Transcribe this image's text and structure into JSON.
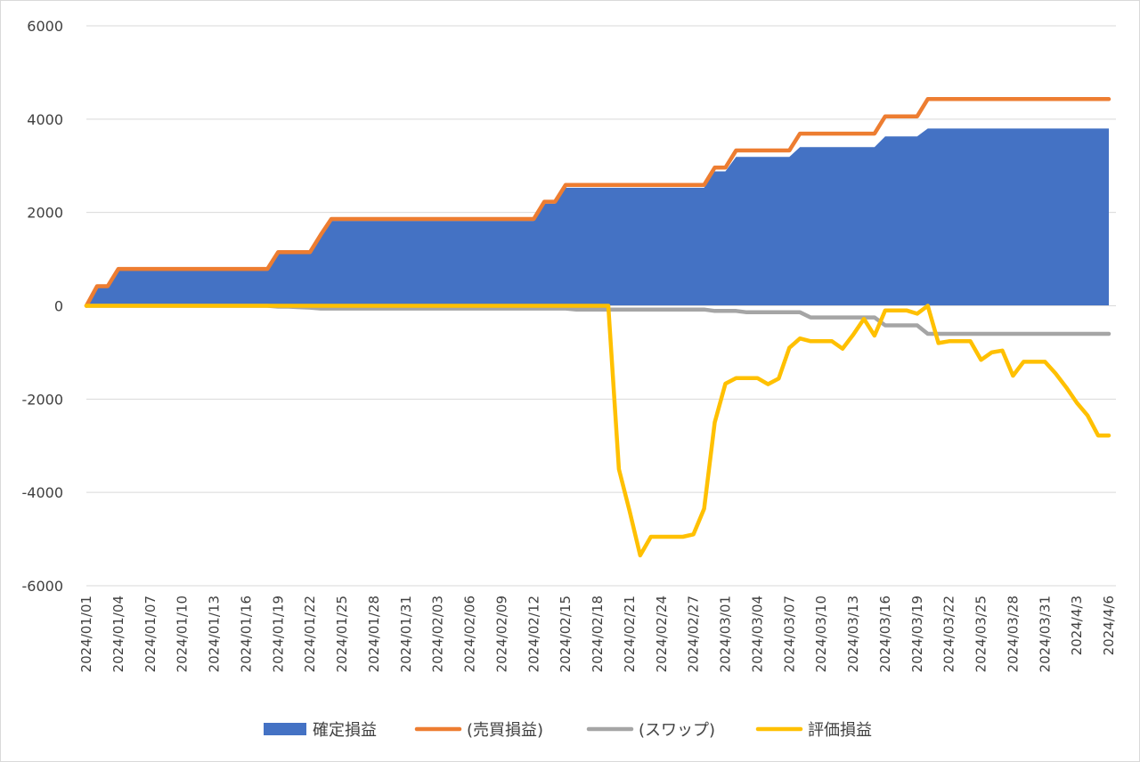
{
  "chart_data": {
    "type": "area",
    "ylim": [
      -6000,
      6000
    ],
    "y_ticks": [
      6000,
      4000,
      2000,
      0,
      -2000,
      -4000,
      -6000
    ],
    "y_tick_labels": [
      "6000",
      "4000",
      "2000",
      "0",
      "-2000",
      "-4000",
      "-6000"
    ],
    "grid": true,
    "legend_position": "bottom",
    "categories": [
      "2024/01/01",
      "2024/01/02",
      "2024/01/03",
      "2024/01/04",
      "2024/01/05",
      "2024/01/06",
      "2024/01/07",
      "2024/01/08",
      "2024/01/09",
      "2024/01/10",
      "2024/01/11",
      "2024/01/12",
      "2024/01/13",
      "2024/01/14",
      "2024/01/15",
      "2024/01/16",
      "2024/01/17",
      "2024/01/18",
      "2024/01/19",
      "2024/01/20",
      "2024/01/21",
      "2024/01/22",
      "2024/01/23",
      "2024/01/24",
      "2024/01/25",
      "2024/01/26",
      "2024/01/27",
      "2024/01/28",
      "2024/01/29",
      "2024/01/30",
      "2024/01/31",
      "2024/02/01",
      "2024/02/02",
      "2024/02/03",
      "2024/02/04",
      "2024/02/05",
      "2024/02/06",
      "2024/02/07",
      "2024/02/08",
      "2024/02/09",
      "2024/02/10",
      "2024/02/11",
      "2024/02/12",
      "2024/02/13",
      "2024/02/14",
      "2024/02/15",
      "2024/02/16",
      "2024/02/17",
      "2024/02/18",
      "2024/02/19",
      "2024/02/20",
      "2024/02/21",
      "2024/02/22",
      "2024/02/23",
      "2024/02/24",
      "2024/02/25",
      "2024/02/26",
      "2024/02/27",
      "2024/02/28",
      "2024/02/29",
      "2024/03/01",
      "2024/03/02",
      "2024/03/03",
      "2024/03/04",
      "2024/03/05",
      "2024/03/06",
      "2024/03/07",
      "2024/03/08",
      "2024/03/09",
      "2024/03/10",
      "2024/03/11",
      "2024/03/12",
      "2024/03/13",
      "2024/03/14",
      "2024/03/15",
      "2024/03/16",
      "2024/03/17",
      "2024/03/18",
      "2024/03/19",
      "2024/03/20",
      "2024/03/21",
      "2024/03/22",
      "2024/03/23",
      "2024/03/24",
      "2024/03/25",
      "2024/03/26",
      "2024/03/27",
      "2024/03/28",
      "2024/03/29",
      "2024/03/30",
      "2024/03/31",
      "2024/4/1",
      "2024/4/2",
      "2024/4/3",
      "2024/4/4",
      "2024/4/5",
      "2024/4/6"
    ],
    "x_tick_labels": [
      "2024/01/01",
      "2024/01/04",
      "2024/01/07",
      "2024/01/10",
      "2024/01/13",
      "2024/01/16",
      "2024/01/19",
      "2024/01/22",
      "2024/01/25",
      "2024/01/28",
      "2024/01/31",
      "2024/02/03",
      "2024/02/06",
      "2024/02/09",
      "2024/02/12",
      "2024/02/15",
      "2024/02/18",
      "2024/02/21",
      "2024/02/24",
      "2024/02/27",
      "2024/03/01",
      "2024/03/04",
      "2024/03/07",
      "2024/03/10",
      "2024/03/13",
      "2024/03/16",
      "2024/03/19",
      "2024/03/22",
      "2024/03/25",
      "2024/03/28",
      "2024/03/31",
      "2024/4/3",
      "2024/4/6"
    ],
    "series": [
      {
        "name": "確定損益",
        "type": "area",
        "color": "#4472c4",
        "values": [
          0,
          400,
          400,
          770,
          770,
          770,
          770,
          770,
          770,
          770,
          770,
          770,
          770,
          770,
          770,
          770,
          770,
          770,
          1110,
          1110,
          1110,
          1110,
          1490,
          1820,
          1820,
          1820,
          1820,
          1820,
          1820,
          1820,
          1820,
          1820,
          1820,
          1820,
          1820,
          1820,
          1820,
          1820,
          1820,
          1820,
          1820,
          1820,
          1820,
          2190,
          2190,
          2530,
          2530,
          2530,
          2530,
          2530,
          2530,
          2530,
          2530,
          2530,
          2530,
          2530,
          2530,
          2530,
          2530,
          2880,
          2880,
          3190,
          3190,
          3190,
          3190,
          3190,
          3190,
          3400,
          3400,
          3400,
          3400,
          3400,
          3400,
          3400,
          3400,
          3630,
          3630,
          3630,
          3630,
          3800,
          3800,
          3800,
          3800,
          3800,
          3800,
          3800,
          3800,
          3800,
          3800,
          3800,
          3800,
          3800,
          3800,
          3800,
          3800,
          3800,
          3800
        ]
      },
      {
        "name": "(売買損益)",
        "type": "line",
        "color": "#ed7d31",
        "values": [
          0,
          420,
          420,
          790,
          790,
          790,
          790,
          790,
          790,
          790,
          790,
          790,
          790,
          790,
          790,
          790,
          790,
          790,
          1150,
          1150,
          1150,
          1150,
          1520,
          1860,
          1860,
          1860,
          1860,
          1860,
          1860,
          1860,
          1860,
          1860,
          1860,
          1860,
          1860,
          1860,
          1860,
          1860,
          1860,
          1860,
          1860,
          1860,
          1860,
          2230,
          2230,
          2590,
          2590,
          2590,
          2590,
          2590,
          2590,
          2590,
          2590,
          2590,
          2590,
          2590,
          2590,
          2590,
          2590,
          2960,
          2960,
          3330,
          3330,
          3330,
          3330,
          3330,
          3330,
          3690,
          3690,
          3690,
          3690,
          3690,
          3690,
          3690,
          3690,
          4060,
          4060,
          4060,
          4060,
          4430,
          4430,
          4430,
          4430,
          4430,
          4430,
          4430,
          4430,
          4430,
          4430,
          4430,
          4430,
          4430,
          4430,
          4430,
          4430,
          4430,
          4430
        ]
      },
      {
        "name": "(スワップ)",
        "type": "line",
        "color": "#a5a5a5",
        "values": [
          0,
          0,
          0,
          0,
          0,
          0,
          0,
          0,
          0,
          0,
          0,
          0,
          0,
          0,
          0,
          0,
          0,
          0,
          -20,
          -20,
          -30,
          -40,
          -60,
          -60,
          -60,
          -60,
          -60,
          -60,
          -60,
          -60,
          -60,
          -60,
          -60,
          -60,
          -60,
          -60,
          -60,
          -60,
          -60,
          -60,
          -60,
          -60,
          -60,
          -60,
          -60,
          -60,
          -80,
          -80,
          -80,
          -80,
          -80,
          -80,
          -80,
          -80,
          -80,
          -80,
          -80,
          -80,
          -80,
          -110,
          -110,
          -110,
          -140,
          -140,
          -140,
          -140,
          -140,
          -140,
          -250,
          -250,
          -250,
          -250,
          -250,
          -250,
          -250,
          -420,
          -420,
          -420,
          -420,
          -600,
          -600,
          -600,
          -600,
          -600,
          -600,
          -600,
          -600,
          -600,
          -600,
          -600,
          -600,
          -600,
          -600,
          -600,
          -600,
          -600,
          -600
        ]
      },
      {
        "name": "評価損益",
        "type": "line",
        "color": "#ffc000",
        "values": [
          0,
          0,
          0,
          0,
          0,
          0,
          0,
          0,
          0,
          0,
          0,
          0,
          0,
          0,
          0,
          0,
          0,
          0,
          0,
          0,
          0,
          0,
          0,
          0,
          0,
          0,
          0,
          0,
          0,
          0,
          0,
          0,
          0,
          0,
          0,
          0,
          0,
          0,
          0,
          0,
          0,
          0,
          0,
          0,
          0,
          0,
          0,
          0,
          0,
          0,
          -3500,
          -4400,
          -5350,
          -4950,
          -4950,
          -4950,
          -4950,
          -4900,
          -4350,
          -2500,
          -1670,
          -1550,
          -1550,
          -1550,
          -1680,
          -1560,
          -900,
          -700,
          -760,
          -760,
          -760,
          -920,
          -620,
          -280,
          -640,
          -100,
          -100,
          -100,
          -170,
          0,
          -800,
          -760,
          -760,
          -760,
          -1160,
          -1000,
          -960,
          -1500,
          -1200,
          -1200,
          -1200,
          -1450,
          -1750,
          -2080,
          -2350,
          -2780,
          -2780
        ]
      }
    ]
  }
}
